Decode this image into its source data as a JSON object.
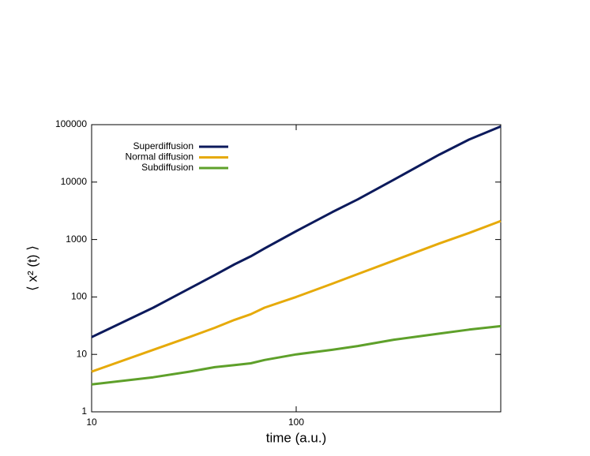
{
  "chart_data": {
    "type": "line",
    "xlabel": "time (a.u.)",
    "ylabel": "⟨ x² (t) ⟩",
    "x": [
      10,
      20,
      30,
      40,
      50,
      60,
      70,
      100,
      150,
      200,
      300,
      500,
      700,
      1000
    ],
    "series": [
      {
        "name": "Superdiffusion",
        "color": "#0c1a5c",
        "values": [
          20,
          65,
          140,
          240,
          370,
          510,
          700,
          1400,
          3000,
          5000,
          11000,
          30000,
          55000,
          93000
        ]
      },
      {
        "name": "Normal diffusion",
        "color": "#e6aa0a",
        "values": [
          5,
          12,
          20,
          29,
          40,
          50,
          65,
          100,
          170,
          250,
          430,
          850,
          1300,
          2100
        ]
      },
      {
        "name": "Subdiffusion",
        "color": "#5ea02a",
        "values": [
          3,
          4,
          5,
          6,
          6.5,
          7,
          8,
          10,
          12,
          14,
          18,
          23,
          27,
          31
        ]
      }
    ],
    "xlim": [
      10,
      1000
    ],
    "xticks": [
      10,
      100
    ],
    "ylim": [
      1,
      100000
    ],
    "yticks": [
      1,
      10,
      100,
      1000,
      10000,
      100000
    ],
    "xlog": true,
    "ylog": true,
    "legend": "top-left"
  }
}
